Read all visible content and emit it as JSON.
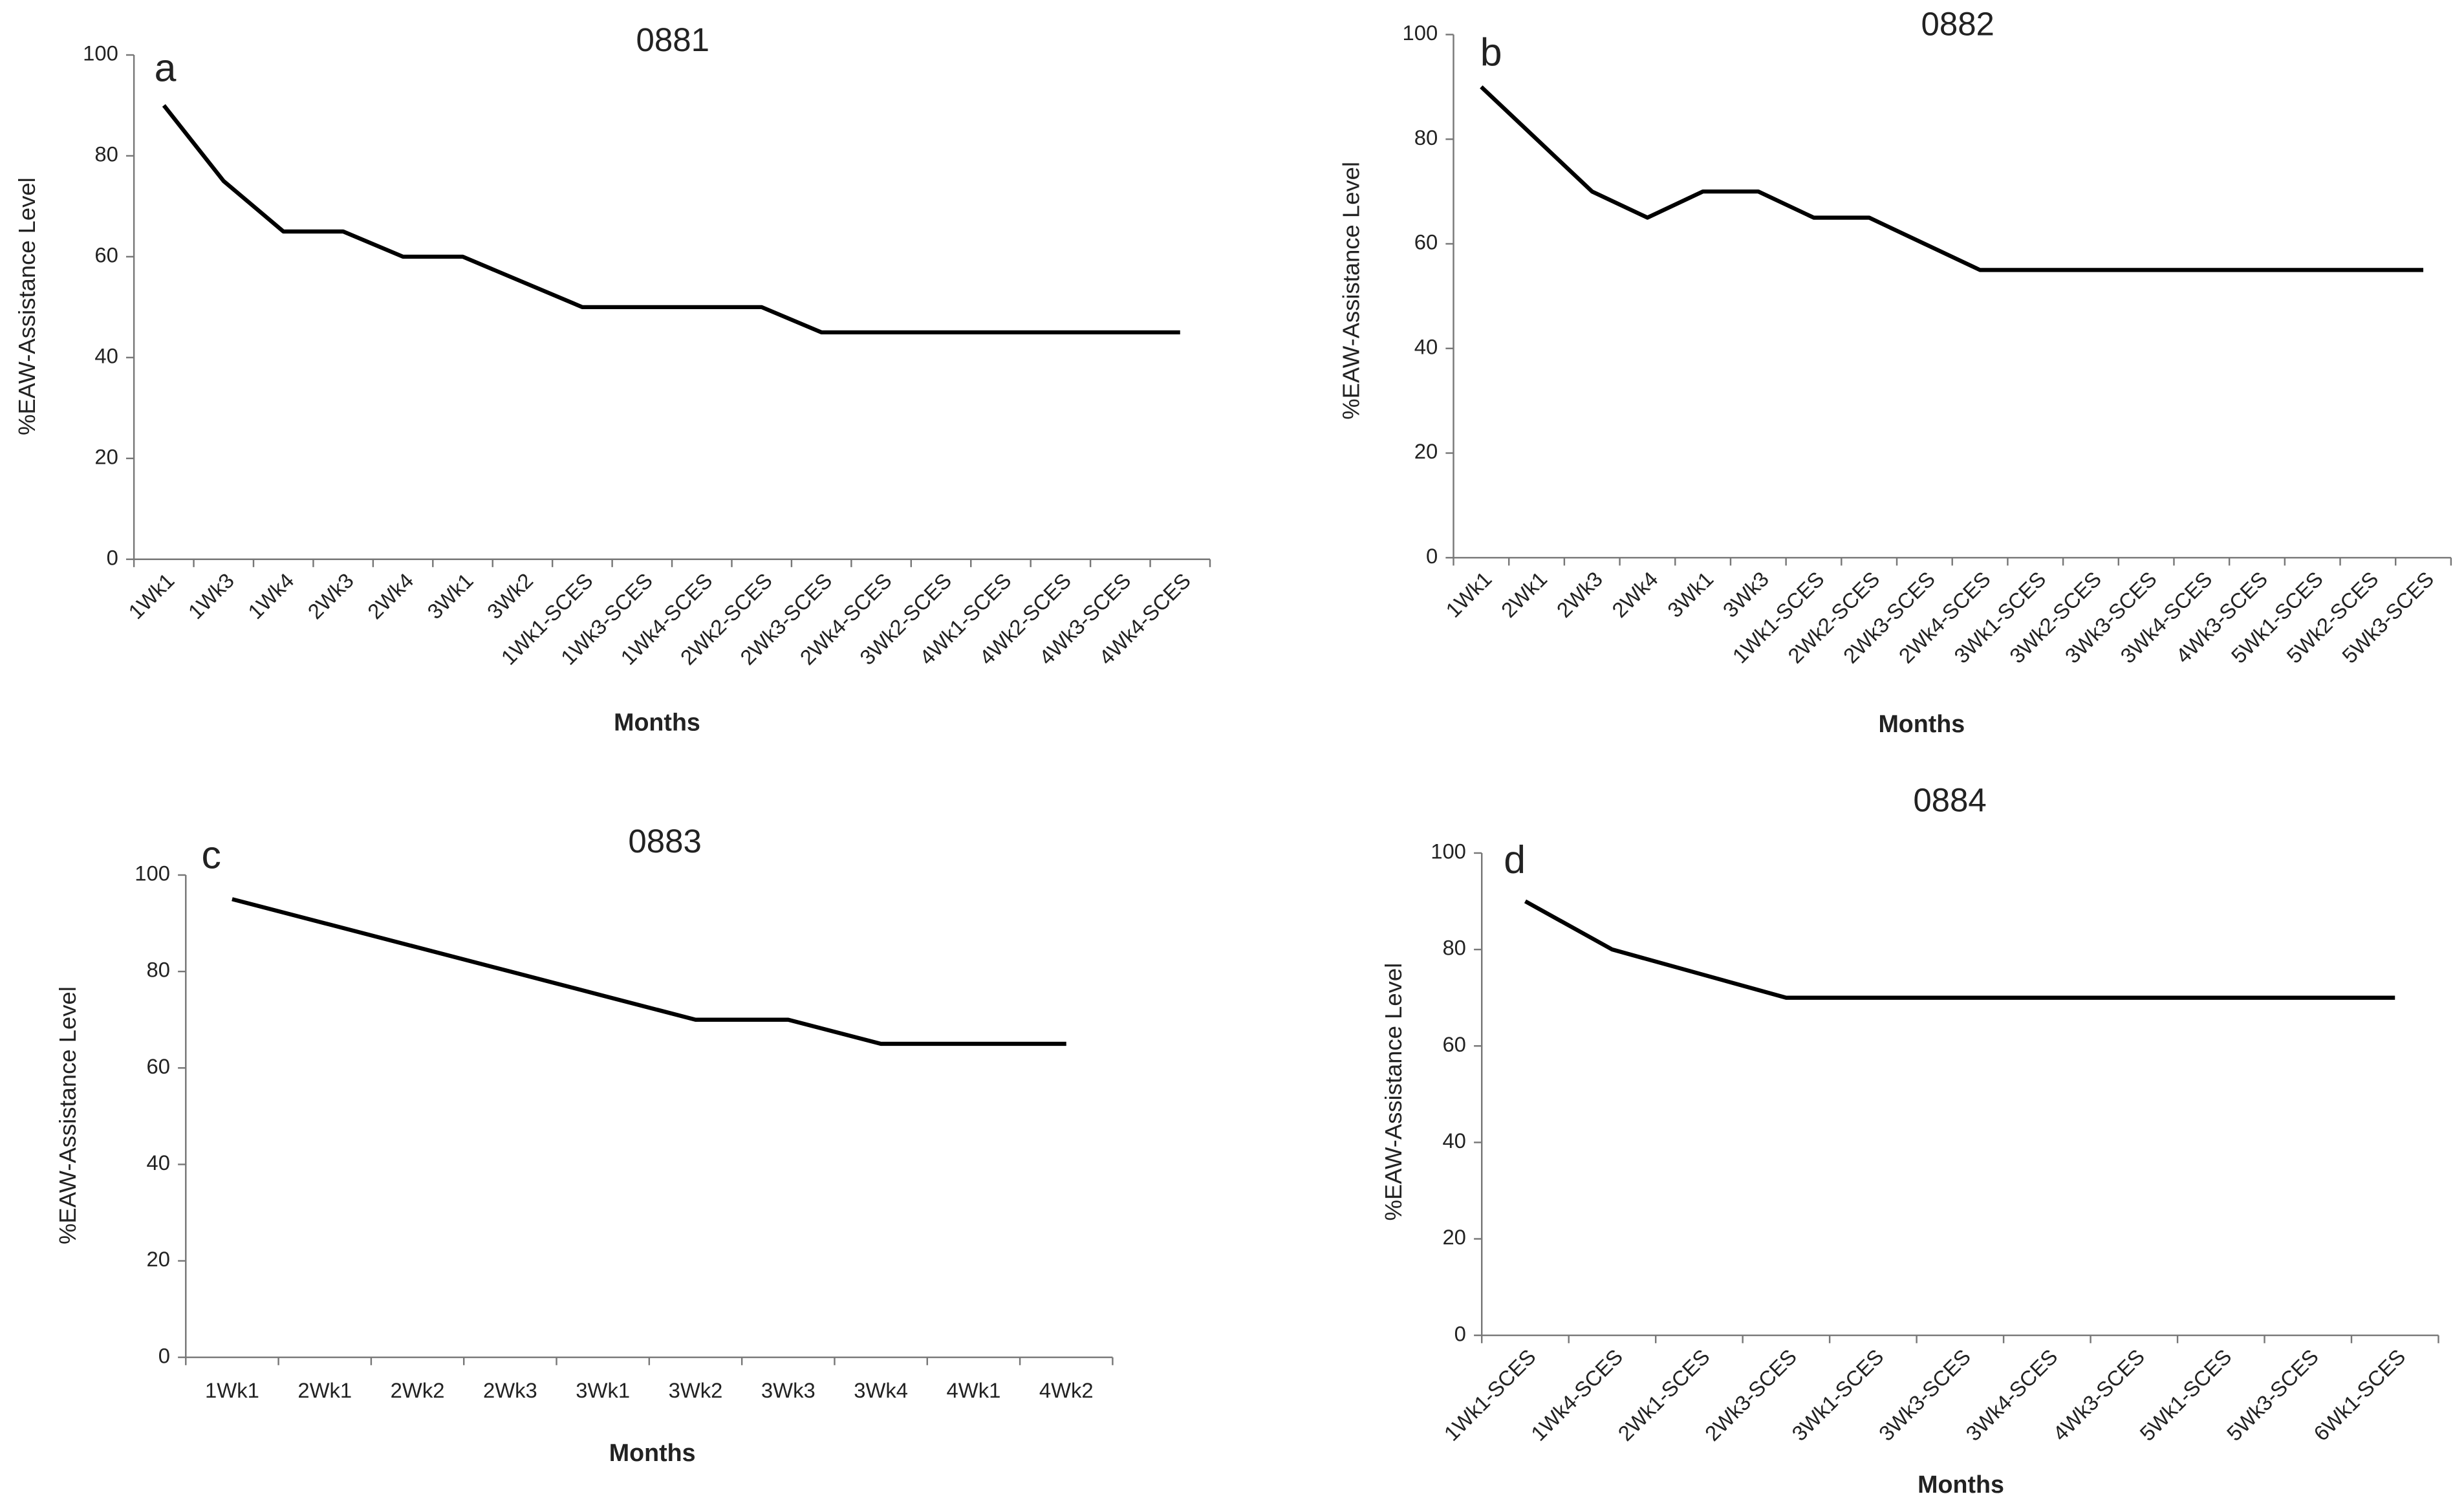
{
  "chart_data": [
    {
      "type": "line",
      "title": "0881",
      "panel_label": "a",
      "x_label": "Months",
      "y_label": "%EAW-Assistance Level",
      "categories": [
        "1Wk1",
        "1Wk3",
        "1Wk4",
        "2Wk3",
        "2Wk4",
        "3Wk1",
        "3Wk2",
        "1Wk1-SCES",
        "1Wk3-SCES",
        "1Wk4-SCES",
        "2Wk2-SCES",
        "2Wk3-SCES",
        "2Wk4-SCES",
        "3Wk2-SCES",
        "4Wk1-SCES",
        "4Wk2-SCES",
        "4Wk3-SCES",
        "4Wk4-SCES"
      ],
      "values": [
        90,
        75,
        65,
        65,
        60,
        60,
        55,
        50,
        50,
        50,
        50,
        45,
        45,
        45,
        45,
        45,
        45,
        45
      ],
      "color": "#000000",
      "ylim": [
        0,
        100
      ],
      "yticks": [
        0,
        20,
        40,
        60,
        80,
        100
      ]
    },
    {
      "type": "line",
      "title": "0882",
      "panel_label": "b",
      "x_label": "Months",
      "y_label": "%EAW-Assistance Level",
      "categories": [
        "1Wk1",
        "2Wk1",
        "2Wk3",
        "2Wk4",
        "3Wk1",
        "3Wk3",
        "1Wk1-SCES",
        "2Wk2-SCES",
        "2Wk3-SCES",
        "2Wk4-SCES",
        "3Wk1-SCES",
        "3Wk2-SCES",
        "3Wk3-SCES",
        "3Wk4-SCES",
        "4Wk3-SCES",
        "5Wk1-SCES",
        "5Wk2-SCES",
        "5Wk3-SCES"
      ],
      "values": [
        90,
        80,
        70,
        65,
        70,
        70,
        65,
        65,
        60,
        55,
        55,
        55,
        55,
        55,
        55,
        55,
        55,
        55
      ],
      "color": "#000000",
      "ylim": [
        0,
        100
      ],
      "yticks": [
        0,
        20,
        40,
        60,
        80,
        100
      ]
    },
    {
      "type": "line",
      "title": "0883",
      "panel_label": "c",
      "x_label": "Months",
      "y_label": "%EAW-Assistance Level",
      "categories": [
        "1Wk1",
        "2Wk1",
        "2Wk2",
        "2Wk3",
        "3Wk1",
        "3Wk2",
        "3Wk3",
        "3Wk4",
        "4Wk1",
        "4Wk2"
      ],
      "values": [
        95,
        90,
        85,
        80,
        75,
        70,
        70,
        65,
        65,
        65
      ],
      "color": "#000000",
      "ylim": [
        0,
        100
      ],
      "yticks": [
        0,
        20,
        40,
        60,
        80,
        100
      ]
    },
    {
      "type": "line",
      "title": "0884",
      "panel_label": "d",
      "x_label": "Months",
      "y_label": "%EAW-Assistance Level",
      "categories": [
        "1Wk1-SCES",
        "1Wk4-SCES",
        "2Wk1-SCES",
        "2Wk3-SCES",
        "3Wk1-SCES",
        "3Wk3-SCES",
        "3Wk4-SCES",
        "4Wk3-SCES",
        "5Wk1-SCES",
        "5Wk3-SCES",
        "6Wk1-SCES"
      ],
      "values": [
        90,
        80,
        75,
        70,
        70,
        70,
        70,
        70,
        70,
        70,
        70
      ],
      "color": "#000000",
      "ylim": [
        0,
        100
      ],
      "yticks": [
        0,
        20,
        40,
        60,
        80,
        100
      ]
    }
  ]
}
